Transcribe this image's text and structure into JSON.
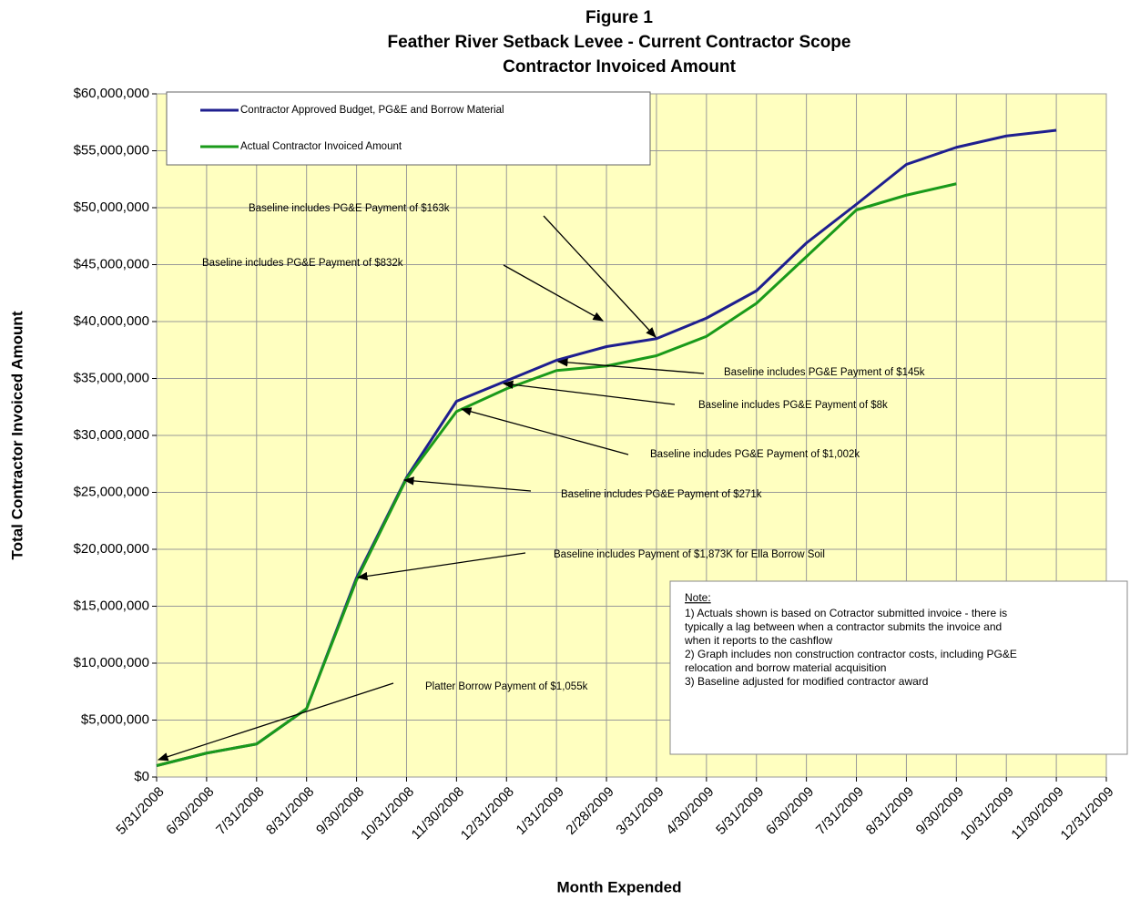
{
  "chart_data": {
    "type": "line",
    "title": [
      "Figure 1",
      "Feather River Setback Levee - Current Contractor Scope",
      "Contractor Invoiced Amount"
    ],
    "x_label": "Month Expended",
    "y_label": "Total Contractor Invoiced Amount",
    "categories": [
      "5/31/2008",
      "6/30/2008",
      "7/31/2008",
      "8/31/2008",
      "9/30/2008",
      "10/31/2008",
      "11/30/2008",
      "12/31/2008",
      "1/31/2009",
      "2/28/2009",
      "3/31/2009",
      "4/30/2009",
      "5/31/2009",
      "6/30/2009",
      "7/31/2009",
      "8/31/2009",
      "9/30/2009",
      "10/31/2009",
      "11/30/2009",
      "12/31/2009"
    ],
    "series": [
      {
        "name": "Contractor Approved Budget, PG&E and Borrow Material",
        "color": "#1f1f8f",
        "values": [
          1000000,
          2100000,
          2900000,
          6000000,
          17500000,
          26300000,
          33000000,
          34800000,
          36600000,
          37800000,
          38500000,
          40300000,
          42700000,
          46900000,
          50300000,
          53800000,
          55300000,
          56300000,
          56800000,
          null
        ]
      },
      {
        "name": "Actual Contractor Invoiced Amount",
        "color": "#1a9a1a",
        "values": [
          1000000,
          2100000,
          2900000,
          6000000,
          17300000,
          26200000,
          32100000,
          34100000,
          35700000,
          36100000,
          37000000,
          38700000,
          41600000,
          45700000,
          49800000,
          51100000,
          52100000,
          null,
          null,
          null
        ]
      }
    ],
    "ylim": [
      0,
      60000000
    ],
    "yticks": [
      {
        "value": 0,
        "label": "$0"
      },
      {
        "value": 5000000,
        "label": "$5,000,000"
      },
      {
        "value": 10000000,
        "label": "$10,000,000"
      },
      {
        "value": 15000000,
        "label": "$15,000,000"
      },
      {
        "value": 20000000,
        "label": "$20,000,000"
      },
      {
        "value": 25000000,
        "label": "$25,000,000"
      },
      {
        "value": 30000000,
        "label": "$30,000,000"
      },
      {
        "value": 35000000,
        "label": "$35,000,000"
      },
      {
        "value": 40000000,
        "label": "$40,000,000"
      },
      {
        "value": 45000000,
        "label": "$45,000,000"
      },
      {
        "value": 50000000,
        "label": "$50,000,000"
      },
      {
        "value": 55000000,
        "label": "$55,000,000"
      },
      {
        "value": 60000000,
        "label": "$60,000,000"
      }
    ],
    "grid": true,
    "legend": "upper left",
    "annotations": [
      "Baseline includes PG&E Payment of $163k",
      "Baseline includes PG&E Payment of $832k",
      "Baseline includes PG&E Payment of $145k",
      "Baseline includes PG&E Payment of $8k",
      "Baseline includes PG&E Payment of $1,002k",
      "Baseline includes PG&E Payment of $271k",
      "Baseline includes Payment of $1,873K for Ella Borrow Soil",
      "Platter Borrow Payment of $1,055k"
    ],
    "note": {
      "heading": "Note:",
      "lines": [
        "1) Actuals shown is based on Cotractor submitted invoice - there is",
        "typically a lag between when a contractor submits the invoice and",
        "when it reports to the cashflow",
        "2) Graph includes non construction contractor costs, including PG&E",
        "relocation and borrow material acquisition",
        "3) Baseline adjusted for modified contractor award"
      ]
    }
  }
}
